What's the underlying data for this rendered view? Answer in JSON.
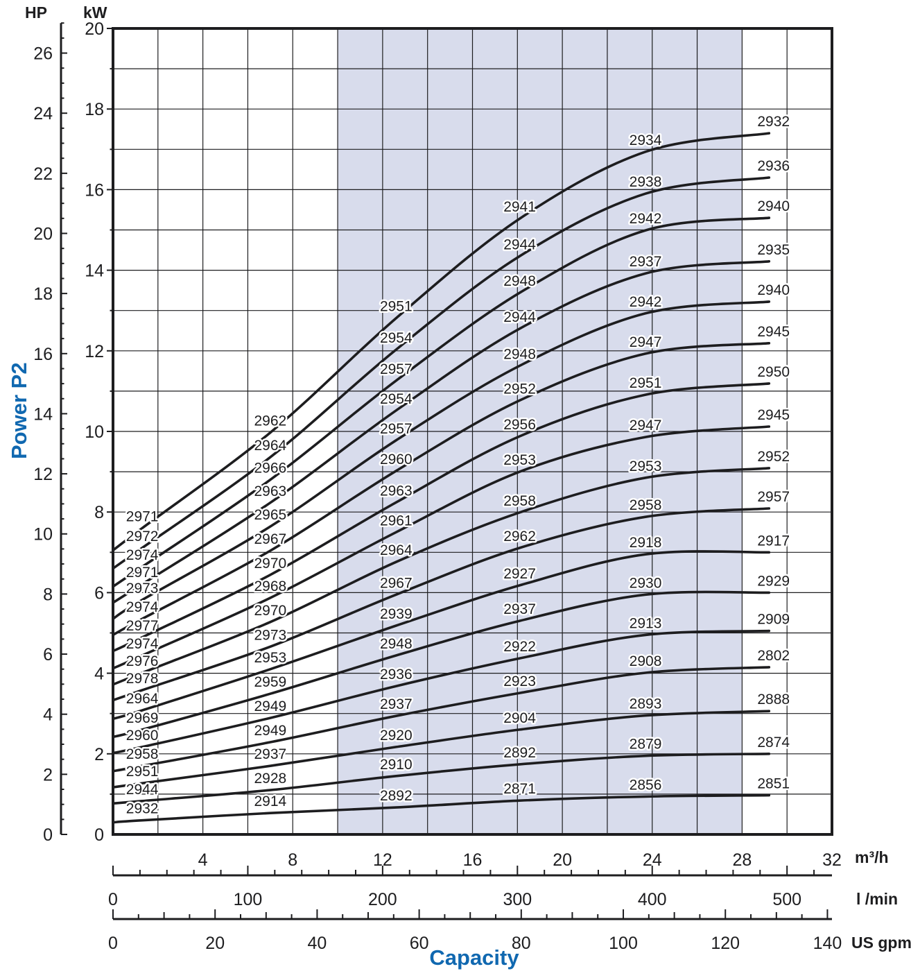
{
  "chart_data": {
    "type": "line",
    "title": "",
    "ylabel": "Power P2",
    "xlabel": "Capacity",
    "legend_position": "none",
    "grid": true,
    "colors": {
      "accent_blue": "#1068b0",
      "shade": "#d8dcec",
      "ink": "#1d1d1f"
    },
    "shaded_region_m3h": [
      10,
      28
    ],
    "y_axis_kw": {
      "unit": "kW",
      "min": 0,
      "max": 20,
      "labeled_ticks": [
        0,
        2,
        4,
        6,
        8,
        10,
        12,
        14,
        16,
        18,
        20
      ],
      "grid_step": 1
    },
    "y_axis_hp": {
      "unit": "HP",
      "min": 0,
      "max": 27,
      "labeled_ticks": [
        0,
        2,
        4,
        6,
        8,
        10,
        12,
        14,
        16,
        18,
        20,
        22,
        24,
        26
      ],
      "minor_step": 0.5
    },
    "x_axis_m3h": {
      "unit": "m³/h",
      "min": 0,
      "max": 32,
      "labeled_ticks": [
        4,
        8,
        12,
        16,
        20,
        24,
        28,
        32
      ],
      "grid_step": 2
    },
    "x_axis_lmin": {
      "unit": "l /min",
      "min": 0,
      "max": 520,
      "labeled_ticks": [
        0,
        100,
        200,
        300,
        400,
        500
      ],
      "minor_step": 20
    },
    "x_axis_usgpm": {
      "unit": "US gpm",
      "min": 0,
      "max": 140,
      "labeled_ticks": [
        0,
        20,
        40,
        60,
        80,
        100,
        120,
        140
      ],
      "minor_step": 5
    },
    "curve_x_m3h": [
      0,
      1.3,
      7.0,
      12.6,
      18.1,
      23.7,
      29.2
    ],
    "label_stations_m3h": [
      1.3,
      7.0,
      12.6,
      18.1,
      23.7,
      29.4
    ],
    "series": [
      {
        "labels": [
          "2971",
          "2962",
          "2951",
          "2941",
          "2934",
          "2932"
        ],
        "kw": [
          7.05,
          7.6,
          9.97,
          12.81,
          15.28,
          16.94,
          17.4
        ]
      },
      {
        "labels": [
          "2972",
          "2964",
          "2954",
          "2944",
          "2938",
          "2936"
        ],
        "kw": [
          6.6,
          7.11,
          9.36,
          12.03,
          14.35,
          15.9,
          16.3
        ]
      },
      {
        "labels": [
          "2974",
          "2966",
          "2957",
          "2948",
          "2942",
          "2940"
        ],
        "kw": [
          6.15,
          6.64,
          8.8,
          11.26,
          13.44,
          14.99,
          15.3
        ]
      },
      {
        "labels": [
          "2971",
          "2963",
          "2954",
          "2944",
          "2937",
          "2935"
        ],
        "kw": [
          5.75,
          6.21,
          8.23,
          10.52,
          12.55,
          13.92,
          14.22
        ]
      },
      {
        "labels": [
          "2973",
          "2965",
          "2957",
          "2948",
          "2942",
          "2940"
        ],
        "kw": [
          5.35,
          5.82,
          7.64,
          9.78,
          11.63,
          12.93,
          13.22
        ]
      },
      {
        "labels": [
          "2974",
          "2967",
          "2960",
          "2952",
          "2947",
          "2945"
        ],
        "kw": [
          4.95,
          5.35,
          7.04,
          9.02,
          10.77,
          11.93,
          12.19
        ]
      },
      {
        "labels": [
          "2977",
          "2970",
          "2963",
          "2956",
          "2951",
          "2950"
        ],
        "kw": [
          4.55,
          4.89,
          6.44,
          8.24,
          9.88,
          10.91,
          11.19
        ]
      },
      {
        "labels": [
          "2974",
          "2968",
          "2961",
          "2953",
          "2947",
          "2945"
        ],
        "kw": [
          4.12,
          4.44,
          5.87,
          7.5,
          9.0,
          9.86,
          10.12
        ]
      },
      {
        "labels": [
          "2976",
          "2970",
          "2964",
          "2958",
          "2953",
          "2952"
        ],
        "kw": [
          3.72,
          4.01,
          5.27,
          6.76,
          7.99,
          8.85,
          9.09
        ]
      },
      {
        "labels": [
          "2978",
          "2973",
          "2967",
          "2962",
          "2958",
          "2957"
        ],
        "kw": [
          3.33,
          3.58,
          4.66,
          5.95,
          7.11,
          7.88,
          8.09
        ]
      },
      {
        "labels": [
          "2964",
          "2953",
          "2939",
          "2927",
          "2918",
          "2917"
        ],
        "kw": [
          2.87,
          3.08,
          4.1,
          5.18,
          6.18,
          6.95,
          7.0
        ]
      },
      {
        "labels": [
          "2969",
          "2959",
          "2948",
          "2937",
          "2930",
          "2929"
        ],
        "kw": [
          2.42,
          2.6,
          3.49,
          4.44,
          5.3,
          5.95,
          6.0
        ]
      },
      {
        "labels": [
          "2960",
          "2949",
          "2936",
          "2922",
          "2913",
          "2909"
        ],
        "kw": [
          2.02,
          2.17,
          2.89,
          3.68,
          4.37,
          4.95,
          5.05
        ]
      },
      {
        "labels": [
          "2958",
          "2949",
          "2937",
          "2923",
          "2908",
          "2802"
        ],
        "kw": [
          1.57,
          1.7,
          2.29,
          2.94,
          3.51,
          4.01,
          4.15
        ]
      },
      {
        "labels": [
          "2951",
          "2937",
          "2920",
          "2904",
          "2893",
          "2888"
        ],
        "kw": [
          1.17,
          1.27,
          1.7,
          2.17,
          2.6,
          2.95,
          3.06
        ]
      },
      {
        "labels": [
          "2944",
          "2928",
          "2910",
          "2892",
          "2879",
          "2874"
        ],
        "kw": [
          0.77,
          0.83,
          1.1,
          1.45,
          1.74,
          1.95,
          2.0
        ]
      },
      {
        "labels": [
          "2932",
          "2914",
          "2892",
          "2871",
          "2856",
          "2851"
        ],
        "kw": [
          0.3,
          0.35,
          0.53,
          0.67,
          0.84,
          0.94,
          0.97
        ]
      }
    ]
  }
}
